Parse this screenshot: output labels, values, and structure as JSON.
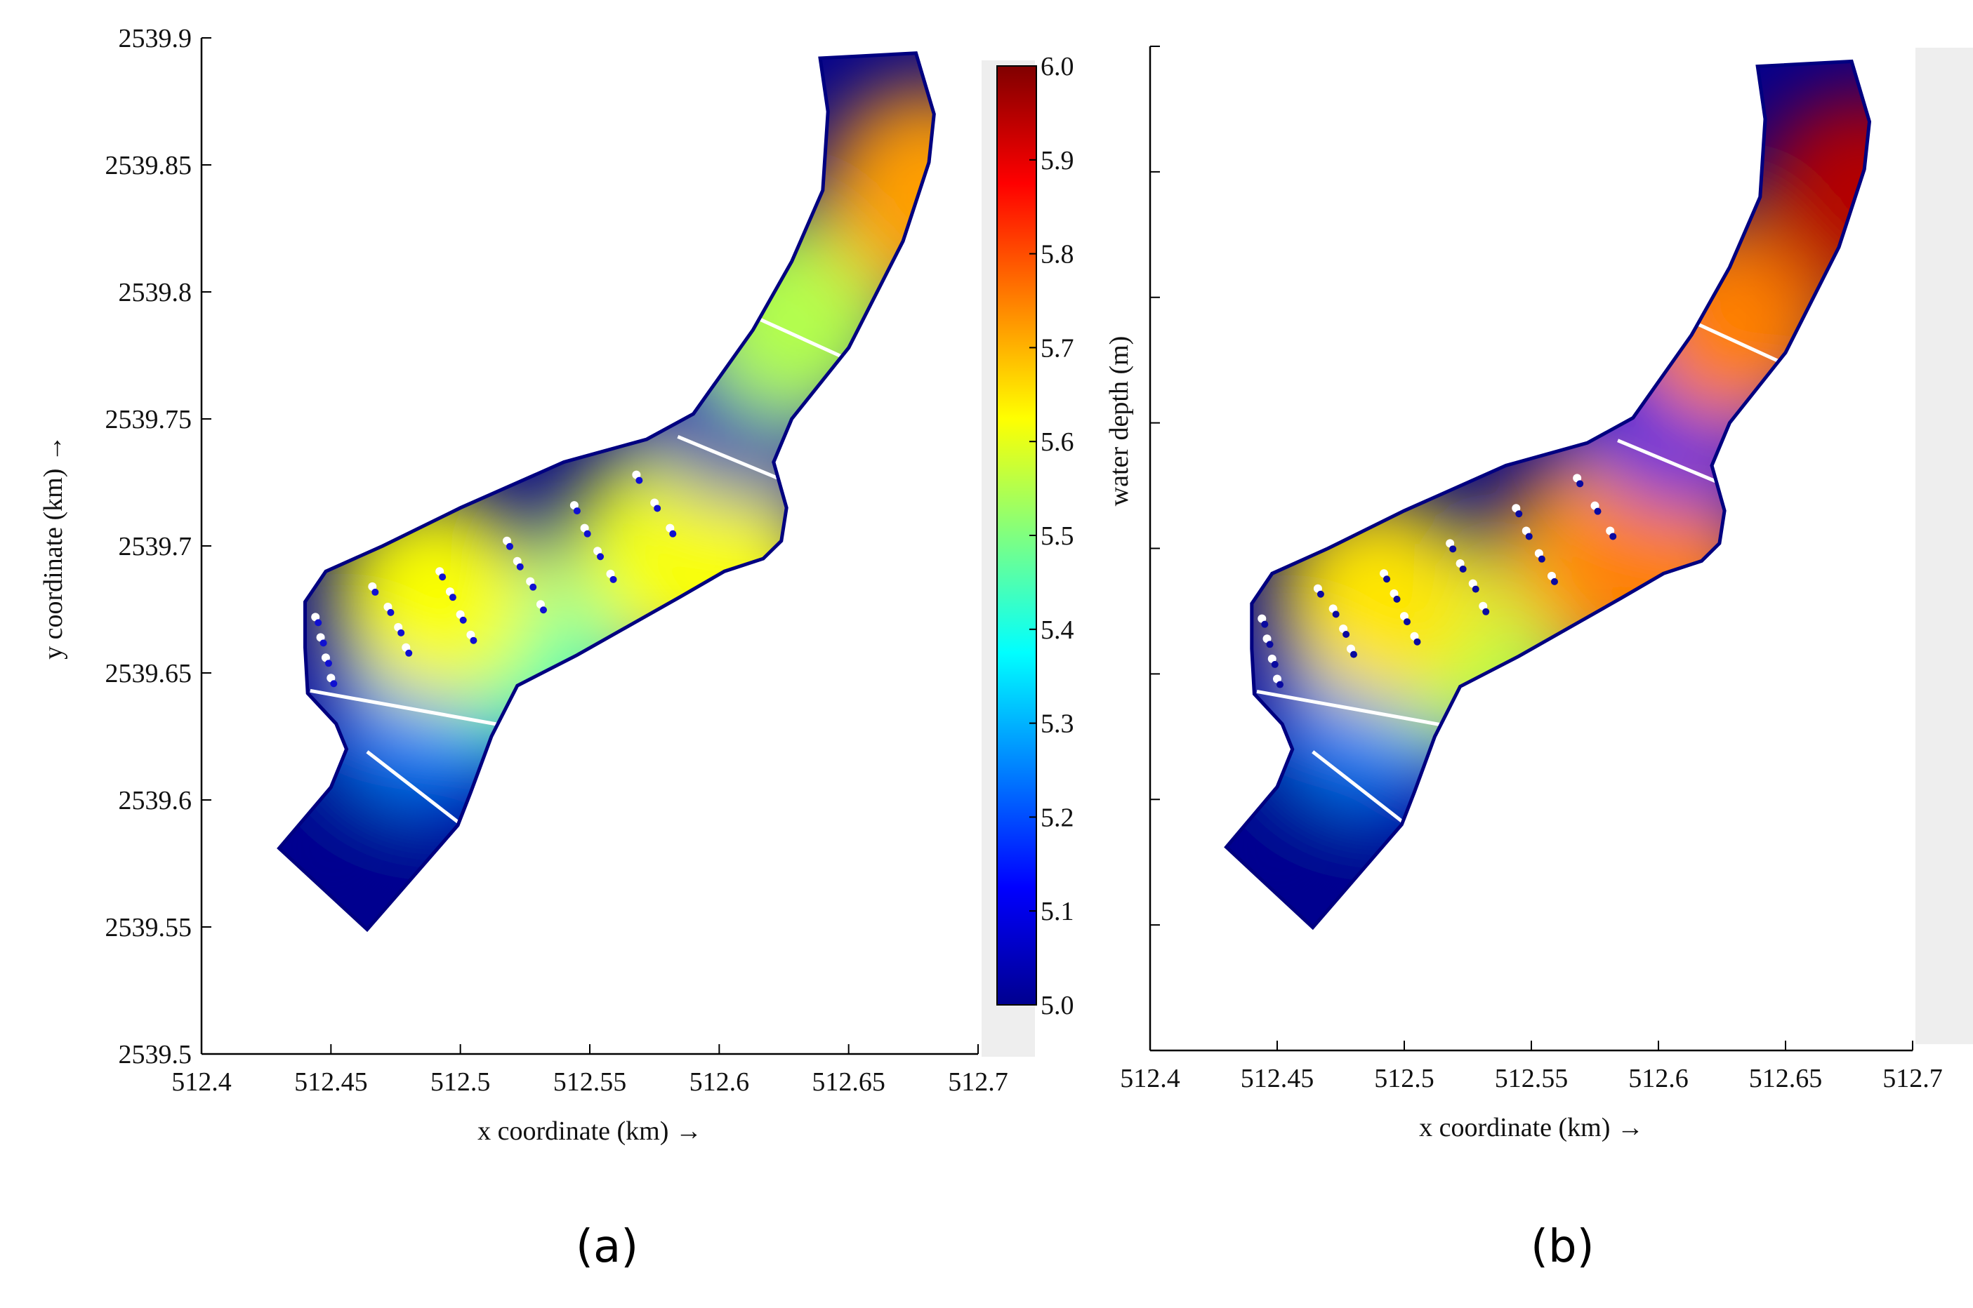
{
  "figure": {
    "panel_labels": [
      "(a)",
      "(b)"
    ]
  },
  "colors": {
    "jet_stops": [
      "#00008f",
      "#0000ff",
      "#0080ff",
      "#00ffff",
      "#80ff80",
      "#ffff00",
      "#ff8000",
      "#ff0000",
      "#800000"
    ],
    "axis": "#000000",
    "outline": "#000080",
    "section_lines": "#ffffff"
  },
  "chart_data": [
    {
      "type": "heatmap",
      "panel": "(a)",
      "xlabel": "x coordinate  (km) →",
      "ylabel": "y coordinate  (km) →",
      "xlim": [
        512.4,
        512.7
      ],
      "ylim": [
        2539.5,
        2539.9
      ],
      "x_ticks": [
        "512.4",
        "512.45",
        "512.5",
        "512.55",
        "512.6",
        "512.65",
        "512.7"
      ],
      "y_ticks": [
        "2539.5",
        "2539.55",
        "2539.6",
        "2539.65",
        "2539.7",
        "2539.75",
        "2539.8",
        "2539.85",
        "2539.9"
      ],
      "colorbar": {
        "label": "",
        "range": [
          5.0,
          6.0
        ],
        "ticks": [
          "5.0",
          "5.1",
          "5.2",
          "5.3",
          "5.4",
          "5.5",
          "5.6",
          "5.7",
          "5.8",
          "5.9",
          "6.0"
        ]
      },
      "field_samples": [
        {
          "x": 512.45,
          "y": 2539.58,
          "depth": 5.0
        },
        {
          "x": 512.49,
          "y": 2539.64,
          "depth": 5.25
        },
        {
          "x": 512.53,
          "y": 2539.66,
          "depth": 5.45
        },
        {
          "x": 512.49,
          "y": 2539.68,
          "depth": 5.62
        },
        {
          "x": 512.58,
          "y": 2539.7,
          "depth": 5.6
        },
        {
          "x": 512.6,
          "y": 2539.69,
          "depth": 5.62
        },
        {
          "x": 512.61,
          "y": 2539.76,
          "depth": 5.05
        },
        {
          "x": 512.63,
          "y": 2539.79,
          "depth": 5.55
        },
        {
          "x": 512.68,
          "y": 2539.84,
          "depth": 5.72
        }
      ]
    },
    {
      "type": "heatmap",
      "panel": "(b)",
      "xlabel": "x coordinate  (km) →",
      "ylabel": "water depth (m)",
      "xlim": [
        512.4,
        512.7
      ],
      "ylim": [
        2539.5,
        2539.9
      ],
      "x_ticks": [
        "512.4",
        "512.45",
        "512.5",
        "512.55",
        "512.6",
        "512.65",
        "512.7"
      ],
      "y_ticks": [],
      "field_samples": [
        {
          "x": 512.45,
          "y": 2539.58,
          "depth": 5.0
        },
        {
          "x": 512.49,
          "y": 2539.64,
          "depth": 5.25
        },
        {
          "x": 512.53,
          "y": 2539.66,
          "depth": 5.55
        },
        {
          "x": 512.49,
          "y": 2539.68,
          "depth": 5.65
        },
        {
          "x": 512.58,
          "y": 2539.7,
          "depth": 5.72
        },
        {
          "x": 512.6,
          "y": 2539.69,
          "depth": 5.75
        },
        {
          "x": 512.61,
          "y": 2539.76,
          "depth": 5.1
        },
        {
          "x": 512.63,
          "y": 2539.79,
          "depth": 5.75
        },
        {
          "x": 512.68,
          "y": 2539.84,
          "depth": 5.95
        }
      ]
    }
  ]
}
